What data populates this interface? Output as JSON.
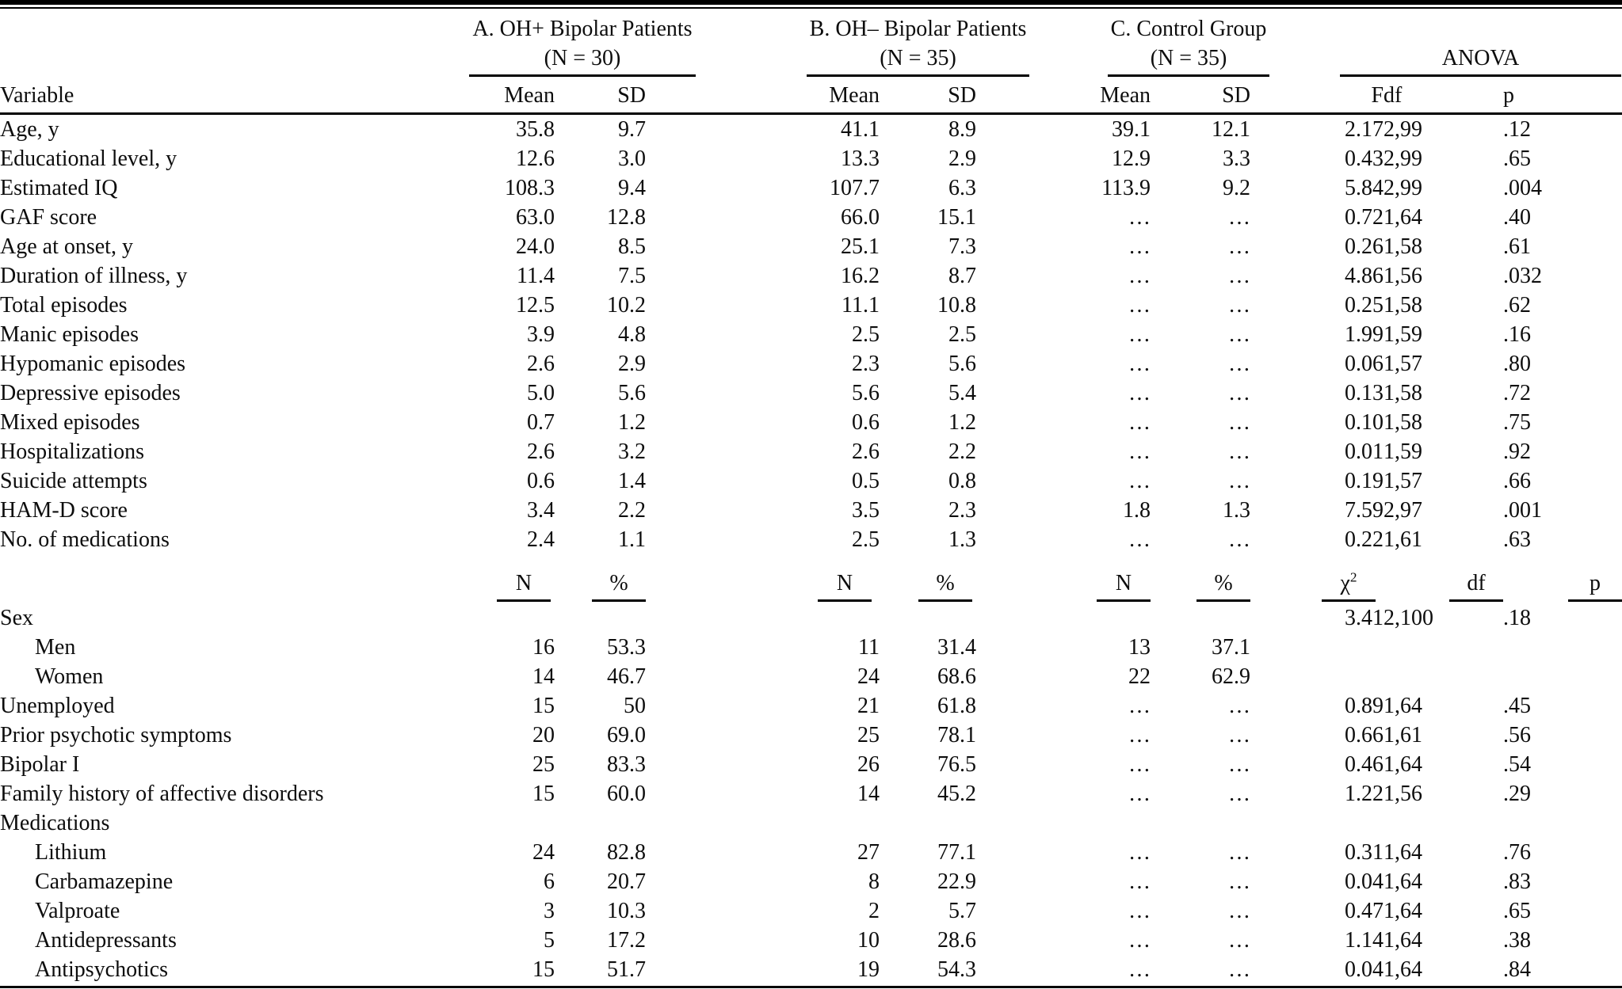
{
  "table": {
    "groups": [
      {
        "title": "A. OH+ Bipolar Patients",
        "subtitle": "(N = 30)"
      },
      {
        "title": "B. OH– Bipolar Patients",
        "subtitle": "(N = 35)"
      },
      {
        "title": "C. Control Group",
        "subtitle": "(N = 35)"
      },
      {
        "title": "ANOVA",
        "subtitle": ""
      }
    ],
    "columns": {
      "variable": "Variable",
      "mean": "Mean",
      "sd": "SD",
      "f": "F",
      "df": "df",
      "p": "p"
    },
    "subcolumns": {
      "n": "N",
      "pct": "%",
      "chi_base": "χ",
      "chi_exp": "2",
      "df": "df",
      "p": "p"
    },
    "section1": [
      {
        "label": "Age, y",
        "indent": false,
        "cells": [
          "35.8",
          "9.7",
          "41.1",
          "8.9",
          "39.1",
          "12.1",
          "2.17",
          "2,99",
          ".12"
        ]
      },
      {
        "label": "Educational level, y",
        "indent": false,
        "cells": [
          "12.6",
          "3.0",
          "13.3",
          "2.9",
          "12.9",
          "3.3",
          "0.43",
          "2,99",
          ".65"
        ]
      },
      {
        "label": "Estimated IQ",
        "indent": false,
        "cells": [
          "108.3",
          "9.4",
          "107.7",
          "6.3",
          "113.9",
          "9.2",
          "5.84",
          "2,99",
          ".004"
        ]
      },
      {
        "label": "GAF score",
        "indent": false,
        "cells": [
          "63.0",
          "12.8",
          "66.0",
          "15.1",
          "…",
          "…",
          "0.72",
          "1,64",
          ".40"
        ]
      },
      {
        "label": "Age at onset, y",
        "indent": false,
        "cells": [
          "24.0",
          "8.5",
          "25.1",
          "7.3",
          "…",
          "…",
          "0.26",
          "1,58",
          ".61"
        ]
      },
      {
        "label": "Duration of illness, y",
        "indent": false,
        "cells": [
          "11.4",
          "7.5",
          "16.2",
          "8.7",
          "…",
          "…",
          "4.86",
          "1,56",
          ".032"
        ]
      },
      {
        "label": "Total episodes",
        "indent": false,
        "cells": [
          "12.5",
          "10.2",
          "11.1",
          "10.8",
          "…",
          "…",
          "0.25",
          "1,58",
          ".62"
        ]
      },
      {
        "label": "Manic episodes",
        "indent": false,
        "cells": [
          "3.9",
          "4.8",
          "2.5",
          "2.5",
          "…",
          "…",
          "1.99",
          "1,59",
          ".16"
        ]
      },
      {
        "label": "Hypomanic episodes",
        "indent": false,
        "cells": [
          "2.6",
          "2.9",
          "2.3",
          "5.6",
          "…",
          "…",
          "0.06",
          "1,57",
          ".80"
        ]
      },
      {
        "label": "Depressive episodes",
        "indent": false,
        "cells": [
          "5.0",
          "5.6",
          "5.6",
          "5.4",
          "…",
          "…",
          "0.13",
          "1,58",
          ".72"
        ]
      },
      {
        "label": "Mixed episodes",
        "indent": false,
        "cells": [
          "0.7",
          "1.2",
          "0.6",
          "1.2",
          "…",
          "…",
          "0.10",
          "1,58",
          ".75"
        ]
      },
      {
        "label": "Hospitalizations",
        "indent": false,
        "cells": [
          "2.6",
          "3.2",
          "2.6",
          "2.2",
          "…",
          "…",
          "0.01",
          "1,59",
          ".92"
        ]
      },
      {
        "label": "Suicide attempts",
        "indent": false,
        "cells": [
          "0.6",
          "1.4",
          "0.5",
          "0.8",
          "…",
          "…",
          "0.19",
          "1,57",
          ".66"
        ]
      },
      {
        "label": "HAM-D score",
        "indent": false,
        "cells": [
          "3.4",
          "2.2",
          "3.5",
          "2.3",
          "1.8",
          "1.3",
          "7.59",
          "2,97",
          ".001"
        ]
      },
      {
        "label": "No. of medications",
        "indent": false,
        "cells": [
          "2.4",
          "1.1",
          "2.5",
          "1.3",
          "…",
          "…",
          "0.22",
          "1,61",
          ".63"
        ]
      }
    ],
    "section2": [
      {
        "label": "Sex",
        "indent": false,
        "cells": [
          "",
          "",
          "",
          "",
          "",
          "",
          "3.41",
          "2,100",
          ".18"
        ]
      },
      {
        "label": "Men",
        "indent": true,
        "cells": [
          "16",
          "53.3",
          "11",
          "31.4",
          "13",
          "37.1",
          "",
          "",
          ""
        ]
      },
      {
        "label": "Women",
        "indent": true,
        "cells": [
          "14",
          "46.7",
          "24",
          "68.6",
          "22",
          "62.9",
          "",
          "",
          ""
        ]
      },
      {
        "label": "Unemployed",
        "indent": false,
        "cells": [
          "15",
          "50",
          "21",
          "61.8",
          "…",
          "…",
          "0.89",
          "1,64",
          ".45"
        ]
      },
      {
        "label": "Prior psychotic symptoms",
        "indent": false,
        "cells": [
          "20",
          "69.0",
          "25",
          "78.1",
          "…",
          "…",
          "0.66",
          "1,61",
          ".56"
        ]
      },
      {
        "label": "Bipolar I",
        "indent": false,
        "cells": [
          "25",
          "83.3",
          "26",
          "76.5",
          "…",
          "…",
          "0.46",
          "1,64",
          ".54"
        ]
      },
      {
        "label": "Family history of affective disorders",
        "indent": false,
        "cells": [
          "15",
          "60.0",
          "14",
          "45.2",
          "…",
          "…",
          "1.22",
          "1,56",
          ".29"
        ]
      },
      {
        "label": "Medications",
        "indent": false,
        "cells": [
          "",
          "",
          "",
          "",
          "",
          "",
          "",
          "",
          ""
        ]
      },
      {
        "label": "Lithium",
        "indent": true,
        "cells": [
          "24",
          "82.8",
          "27",
          "77.1",
          "…",
          "…",
          "0.31",
          "1,64",
          ".76"
        ]
      },
      {
        "label": "Carbamazepine",
        "indent": true,
        "cells": [
          "6",
          "20.7",
          "8",
          "22.9",
          "…",
          "…",
          "0.04",
          "1,64",
          ".83"
        ]
      },
      {
        "label": "Valproate",
        "indent": true,
        "cells": [
          "3",
          "10.3",
          "2",
          "5.7",
          "…",
          "…",
          "0.47",
          "1,64",
          ".65"
        ]
      },
      {
        "label": "Antidepressants",
        "indent": true,
        "cells": [
          "5",
          "17.2",
          "10",
          "28.6",
          "…",
          "…",
          "1.14",
          "1,64",
          ".38"
        ]
      },
      {
        "label": "Antipsychotics",
        "indent": true,
        "cells": [
          "15",
          "51.7",
          "19",
          "54.3",
          "…",
          "…",
          "0.04",
          "1,64",
          ".84"
        ]
      }
    ]
  }
}
